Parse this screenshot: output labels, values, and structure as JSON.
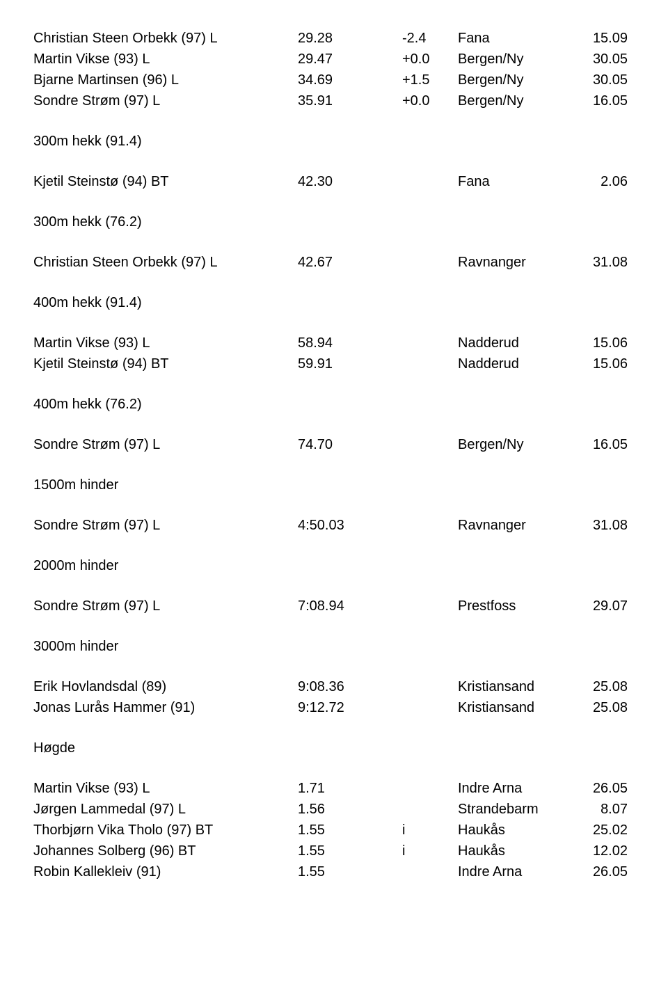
{
  "sections": [
    {
      "rows": [
        {
          "name": "Christian Steen Orbekk (97) L",
          "val": "29.28",
          "diff": "-2.4",
          "loc": "Fana",
          "date": "15.09"
        },
        {
          "name": "Martin Vikse (93) L",
          "val": "29.47",
          "diff": "+0.0",
          "loc": "Bergen/Ny",
          "date": "30.05"
        },
        {
          "name": "Bjarne Martinsen (96) L",
          "val": "34.69",
          "diff": "+1.5",
          "loc": "Bergen/Ny",
          "date": "30.05"
        },
        {
          "name": "Sondre Strøm (97) L",
          "val": "35.91",
          "diff": "+0.0",
          "loc": "Bergen/Ny",
          "date": "16.05"
        }
      ]
    },
    {
      "title": "300m hekk (91.4)",
      "rows": [
        {
          "name": "Kjetil Steinstø (94) BT",
          "val": "42.30",
          "diff": "",
          "loc": "Fana",
          "date": "2.06"
        }
      ]
    },
    {
      "title": "300m hekk (76.2)",
      "rows": [
        {
          "name": "Christian Steen Orbekk (97) L",
          "val": "42.67",
          "diff": "",
          "loc": "Ravnanger",
          "date": "31.08"
        }
      ]
    },
    {
      "title": "400m hekk (91.4)",
      "rows": [
        {
          "name": "Martin Vikse (93) L",
          "val": "58.94",
          "diff": "",
          "loc": "Nadderud",
          "date": "15.06"
        },
        {
          "name": "Kjetil Steinstø (94) BT",
          "val": "59.91",
          "diff": "",
          "loc": "Nadderud",
          "date": "15.06"
        }
      ]
    },
    {
      "title": "400m hekk (76.2)",
      "rows": [
        {
          "name": "Sondre Strøm (97) L",
          "val": "74.70",
          "diff": "",
          "loc": "Bergen/Ny",
          "date": "16.05"
        }
      ]
    },
    {
      "title": "1500m hinder",
      "rows": [
        {
          "name": "Sondre Strøm (97) L",
          "val": "4:50.03",
          "diff": "",
          "loc": "Ravnanger",
          "date": "31.08"
        }
      ]
    },
    {
      "title": "2000m hinder",
      "rows": [
        {
          "name": "Sondre Strøm (97) L",
          "val": "7:08.94",
          "diff": "",
          "loc": "Prestfoss",
          "date": "29.07"
        }
      ]
    },
    {
      "title": "3000m hinder",
      "rows": [
        {
          "name": "Erik Hovlandsdal (89)",
          "val": "9:08.36",
          "diff": "",
          "loc": "Kristiansand",
          "date": "25.08"
        },
        {
          "name": "Jonas Lurås Hammer (91)",
          "val": "9:12.72",
          "diff": "",
          "loc": "Kristiansand",
          "date": "25.08"
        }
      ]
    },
    {
      "title": "Høgde",
      "rows": [
        {
          "name": "Martin Vikse (93) L",
          "val": "1.71",
          "diff": "",
          "loc": "Indre Arna",
          "date": "26.05"
        },
        {
          "name": "Jørgen Lammedal (97) L",
          "val": "1.56",
          "diff": "",
          "loc": "Strandebarm",
          "date": "8.07"
        },
        {
          "name": "Thorbjørn Vika Tholo (97) BT",
          "val": "1.55",
          "diff": "i",
          "loc": "Haukås",
          "date": "25.02"
        },
        {
          "name": "Johannes Solberg (96) BT",
          "val": "1.55",
          "diff": "i",
          "loc": "Haukås",
          "date": "12.02"
        },
        {
          "name": "Robin Kallekleiv (91)",
          "val": "1.55",
          "diff": "",
          "loc": "Indre Arna",
          "date": "26.05"
        }
      ]
    }
  ]
}
